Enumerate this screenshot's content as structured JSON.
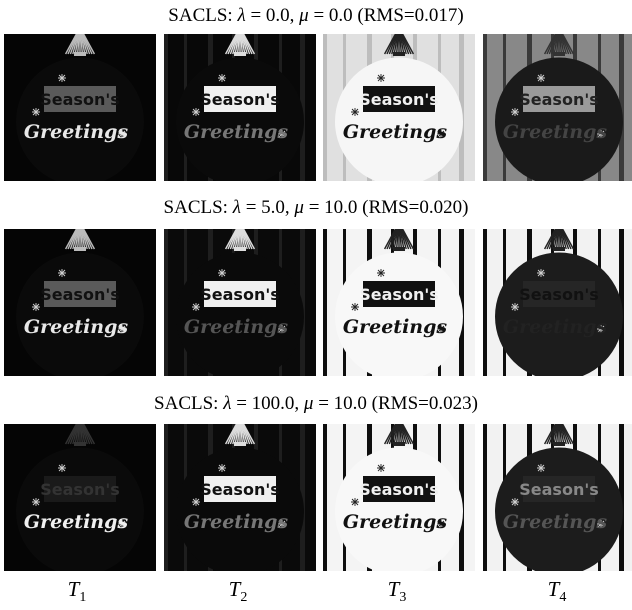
{
  "rows": [
    {
      "title_prefix": "SACLS: ",
      "lambda": "λ",
      "eq1": " = 0.0, ",
      "mu": "μ",
      "eq2": " = 0.0 (RMS=0.017)"
    },
    {
      "title_prefix": "SACLS: ",
      "lambda": "λ",
      "eq1": " = 5.0, ",
      "mu": "μ",
      "eq2": " = 10.0 (RMS=0.020)"
    },
    {
      "title_prefix": "SACLS: ",
      "lambda": "λ",
      "eq1": " = 100.0, ",
      "mu": "μ",
      "eq2": " = 10.0 (RMS=0.023)"
    }
  ],
  "columns": [
    {
      "base": "T",
      "sub": "1"
    },
    {
      "base": "T",
      "sub": "2"
    },
    {
      "base": "T",
      "sub": "3"
    },
    {
      "base": "T",
      "sub": "4"
    }
  ],
  "card": {
    "line1": "Season's",
    "line2": "Greetings"
  },
  "panels": [
    [
      {
        "bg": "#050505",
        "circle": "#0a0a0a",
        "box": "#5a5a5a",
        "boxText": "#111",
        "greet": "#e8e8e8",
        "stripes": "none",
        "tassel": "#bbbbbb"
      },
      {
        "bg": "#080808",
        "circle": "#0a0a0a",
        "box": "#f0f0f0",
        "boxText": "#111",
        "greet": "#777",
        "stripes": "faint",
        "tassel": "#dddddd"
      },
      {
        "bg": "#e0e0e0",
        "circle": "#f6f6f6",
        "box": "#111",
        "boxText": "#f0f0f0",
        "greet": "#111",
        "stripes": "light",
        "tassel": "#222"
      },
      {
        "bg": "#888",
        "circle": "#1a1a1a",
        "box": "#9a9a9a",
        "boxText": "#222",
        "greet": "#444",
        "stripes": "mid",
        "tassel": "#333"
      }
    ],
    [
      {
        "bg": "#050505",
        "circle": "#0a0a0a",
        "box": "#5a5a5a",
        "boxText": "#111",
        "greet": "#e8e8e8",
        "stripes": "none",
        "tassel": "#bbbbbb"
      },
      {
        "bg": "#0a0a0a",
        "circle": "#0a0a0a",
        "box": "#f0f0f0",
        "boxText": "#111",
        "greet": "#555",
        "stripes": "faint",
        "tassel": "#dddddd"
      },
      {
        "bg": "#f4f4f4",
        "circle": "#f8f8f8",
        "box": "#111",
        "boxText": "#f0f0f0",
        "greet": "#111",
        "stripes": "bold",
        "tassel": "#222"
      },
      {
        "bg": "#f2f2f2",
        "circle": "#1c1c1c",
        "box": "#262626",
        "boxText": "#111",
        "greet": "#222",
        "stripes": "bold",
        "tassel": "#222"
      }
    ],
    [
      {
        "bg": "#050505",
        "circle": "#0a0a0a",
        "box": "#1a1a1a",
        "boxText": "#333",
        "greet": "#f0f0f0",
        "stripes": "none",
        "tassel": "#333"
      },
      {
        "bg": "#0a0a0a",
        "circle": "#0a0a0a",
        "box": "#f0f0f0",
        "boxText": "#111",
        "greet": "#777",
        "stripes": "faint",
        "tassel": "#dddddd"
      },
      {
        "bg": "#f4f4f4",
        "circle": "#f8f8f8",
        "box": "#111",
        "boxText": "#f0f0f0",
        "greet": "#111",
        "stripes": "bold",
        "tassel": "#222"
      },
      {
        "bg": "#f2f2f2",
        "circle": "#1c1c1c",
        "box": "#262626",
        "boxText": "#888",
        "greet": "#555",
        "stripes": "bold",
        "tassel": "#222"
      }
    ]
  ]
}
